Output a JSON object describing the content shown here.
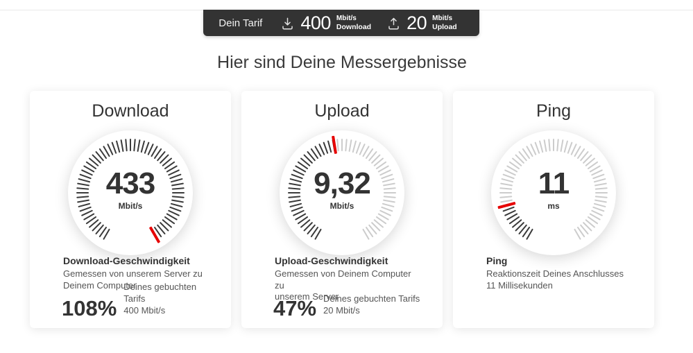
{
  "colors": {
    "accent_red": "#e60000",
    "bar_bg": "#333333",
    "tick_dark": "#3a3a3a",
    "tick_light": "#cccccc"
  },
  "tariff_bar": {
    "label": "Dein Tarif",
    "download": {
      "value": "400",
      "unit": "Mbit/s",
      "label": "Download",
      "icon": "download-tray-icon"
    },
    "upload": {
      "value": "20",
      "unit": "Mbit/s",
      "label": "Upload",
      "icon": "upload-tray-icon"
    }
  },
  "heading": "Hier sind Deine Messergebnisse",
  "cards": [
    {
      "title": "Download",
      "gauge": {
        "value": "433",
        "unit": "Mbit/s",
        "fraction": 1.0
      },
      "result_title": "Download-Geschwindigkeit",
      "desc_line1": "Gemessen von unserem Server zu",
      "desc_line2": "Deinem Computer",
      "percent": "108%",
      "percent_line1": "Deines gebuchten Tarifs",
      "percent_line2": "400 Mbit/s"
    },
    {
      "title": "Upload",
      "gauge": {
        "value": "9,32",
        "unit": "Mbit/s",
        "fraction": 0.47
      },
      "result_title": "Upload-Geschwindigkeit",
      "desc_line1": "Gemessen von Deinem Computer zu",
      "desc_line2": "unserem Server",
      "percent": "47%",
      "percent_line1": "Deines gebuchten Tarifs",
      "percent_line2": "20 Mbit/s"
    },
    {
      "title": "Ping",
      "gauge": {
        "value": "11",
        "unit": "ms",
        "fraction": 0.15
      },
      "result_title": "Ping",
      "desc_line1": "Reaktionszeit Deines Anschlusses",
      "desc_line2": "11 Millisekunden"
    }
  ]
}
